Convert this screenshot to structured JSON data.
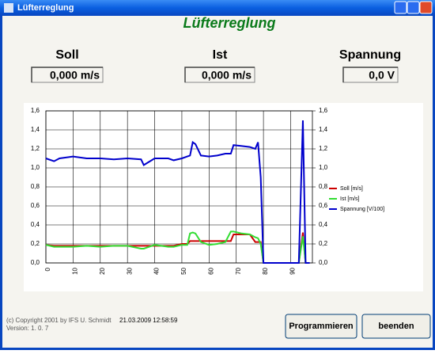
{
  "window": {
    "title": "Lüfterreglung"
  },
  "header": {
    "title": "Lüfterreglung"
  },
  "readouts": [
    {
      "label": "Soll",
      "value": "0,000 m/s"
    },
    {
      "label": "Ist",
      "value": "0,000 m/s"
    },
    {
      "label": "Spannung",
      "value": "0,0 V"
    }
  ],
  "chart_data": {
    "type": "line",
    "x": [
      0,
      3,
      5,
      10,
      15,
      20,
      25,
      30,
      35,
      36,
      40,
      45,
      47,
      50,
      52,
      53,
      54,
      55,
      57,
      60,
      63,
      66,
      68,
      69,
      72,
      75,
      77,
      78,
      79,
      80,
      85,
      90,
      93,
      94.5,
      95.5,
      97
    ],
    "series": [
      {
        "name": "Soll [m/s]",
        "color": "#cc0000",
        "values": [
          0.19,
          0.18,
          0.18,
          0.18,
          0.18,
          0.18,
          0.18,
          0.18,
          0.18,
          0.18,
          0.18,
          0.18,
          0.18,
          0.2,
          0.2,
          0.23,
          0.23,
          0.23,
          0.23,
          0.23,
          0.23,
          0.23,
          0.23,
          0.3,
          0.3,
          0.3,
          0.22,
          0.22,
          0.22,
          0,
          0,
          0,
          0,
          0.32,
          0,
          0
        ]
      },
      {
        "name": "Ist [m/s]",
        "color": "#33dd33",
        "values": [
          0.19,
          0.17,
          0.17,
          0.17,
          0.18,
          0.17,
          0.18,
          0.18,
          0.15,
          0.15,
          0.19,
          0.17,
          0.17,
          0.19,
          0.19,
          0.31,
          0.32,
          0.31,
          0.22,
          0.19,
          0.2,
          0.22,
          0.33,
          0.33,
          0.31,
          0.3,
          0.27,
          0.26,
          0.2,
          0,
          0,
          0,
          0,
          0.28,
          0,
          0
        ]
      },
      {
        "name": "Spannung [V/100]",
        "color": "#0000cc",
        "values": [
          1.1,
          1.07,
          1.1,
          1.12,
          1.1,
          1.1,
          1.09,
          1.1,
          1.09,
          1.03,
          1.1,
          1.1,
          1.08,
          1.1,
          1.12,
          1.13,
          1.27,
          1.25,
          1.13,
          1.12,
          1.13,
          1.15,
          1.15,
          1.24,
          1.23,
          1.22,
          1.2,
          1.27,
          0.9,
          0,
          0,
          0,
          0,
          1.5,
          0,
          0
        ]
      }
    ],
    "xlim": [
      0,
      98
    ],
    "xticks": [
      0,
      10,
      20,
      30,
      40,
      50,
      60,
      70,
      80,
      90
    ],
    "ylim": [
      0,
      1.6
    ],
    "yticks": [
      {
        "value": 0,
        "label": "0,0"
      },
      {
        "value": 0.2,
        "label": "0,2"
      },
      {
        "value": 0.4,
        "label": "0,4"
      },
      {
        "value": 0.6,
        "label": "0,6"
      },
      {
        "value": 0.8,
        "label": "0,8"
      },
      {
        "value": 1,
        "label": "1,0"
      },
      {
        "value": 1.2,
        "label": "1,2"
      },
      {
        "value": 1.4,
        "label": "1,4"
      },
      {
        "value": 1.6,
        "label": "1,6"
      }
    ],
    "y2lim": [
      0,
      1.6
    ],
    "y2ticks": [
      {
        "value": 0,
        "label": "0,0"
      },
      {
        "value": 0.2,
        "label": "0,2"
      },
      {
        "value": 0.4,
        "label": "0,4"
      },
      {
        "value": 0.6,
        "label": "0,6"
      },
      {
        "value": 0.8,
        "label": "0,8"
      },
      {
        "value": 1,
        "label": "1,0"
      },
      {
        "value": 1.2,
        "label": "1,2"
      },
      {
        "value": 1.4,
        "label": "1,4"
      },
      {
        "value": 1.6,
        "label": "1,6"
      }
    ],
    "grid": true,
    "legend": "right"
  },
  "footer": {
    "copyright": "(c) Copyright 2001 by IFS U. Schmidt",
    "version": "Version:  1. 0. 7",
    "timestamp": "21.03.2009  12:58:59"
  },
  "buttons": [
    "Programmieren",
    "beenden"
  ]
}
